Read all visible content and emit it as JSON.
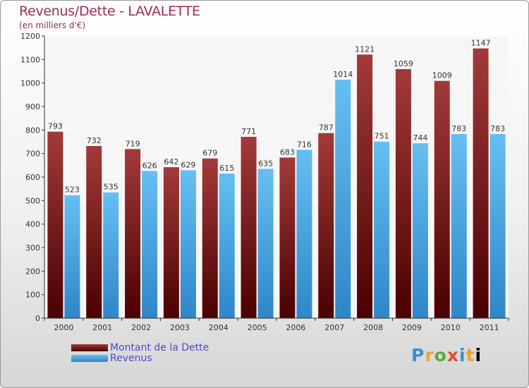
{
  "header": {
    "title": "Revenus/Dette - LAVALETTE",
    "subtitle": "(en milliers d'€)"
  },
  "legend": {
    "dette_label": "Montant de la Dette",
    "revenus_label": "Revenus"
  },
  "brand": {
    "text": "Proxiti"
  },
  "colors": {
    "dette": "#7a1f1f",
    "revenus": "#4aa8e8",
    "title": "#9b2b55",
    "legend_text": "#4a4ad6"
  },
  "chart_data": {
    "type": "bar",
    "title": "Revenus/Dette - LAVALETTE",
    "subtitle": "(en milliers d'€)",
    "categories": [
      "2000",
      "2001",
      "2002",
      "2003",
      "2004",
      "2005",
      "2006",
      "2007",
      "2008",
      "2009",
      "2010",
      "2011"
    ],
    "series": [
      {
        "name": "Montant de la Dette",
        "values": [
          793,
          732,
          719,
          642,
          679,
          771,
          683,
          787,
          1121,
          1059,
          1009,
          1147
        ]
      },
      {
        "name": "Revenus",
        "values": [
          523,
          535,
          626,
          629,
          615,
          635,
          716,
          1014,
          751,
          744,
          783,
          783
        ]
      }
    ],
    "ylim": [
      0,
      1200
    ],
    "yticks": [
      0,
      100,
      200,
      300,
      400,
      500,
      600,
      700,
      800,
      900,
      1000,
      1100,
      1200
    ],
    "grid": true,
    "legend_position": "bottom-left"
  }
}
